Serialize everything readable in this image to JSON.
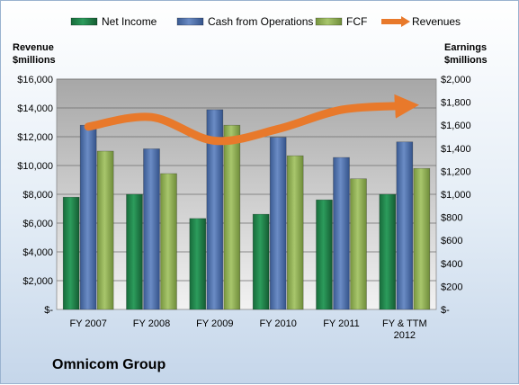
{
  "company_label": "Omnicom Group",
  "chart_data": {
    "type": "bar",
    "categories": [
      "FY 2007",
      "FY 2008",
      "FY 2009",
      "FY 2010",
      "FY 2011",
      "FY & TTM 2012"
    ],
    "category_lines": [
      [
        "FY 2007"
      ],
      [
        "FY 2008"
      ],
      [
        "FY 2009"
      ],
      [
        "FY 2010"
      ],
      [
        "FY 2011"
      ],
      [
        "FY & TTM",
        "2012"
      ]
    ],
    "left_axis": {
      "title_lines": [
        "Revenue",
        "$millions"
      ],
      "ylim": [
        0,
        16000
      ],
      "ticks": [
        0,
        2000,
        4000,
        6000,
        8000,
        10000,
        12000,
        14000,
        16000
      ],
      "tick_labels": [
        "$-",
        "$2,000",
        "$4,000",
        "$6,000",
        "$8,000",
        "$10,000",
        "$12,000",
        "$14,000",
        "$16,000"
      ]
    },
    "right_axis": {
      "title_lines": [
        "Earnings",
        "$millions"
      ],
      "ylim": [
        0,
        2000
      ],
      "ticks": [
        0,
        200,
        400,
        600,
        800,
        1000,
        1200,
        1400,
        1600,
        1800,
        2000
      ],
      "tick_labels": [
        "$-",
        "$200",
        "$400",
        "$600",
        "$800",
        "$1,000",
        "$1,200",
        "$1,400",
        "$1,600",
        "$1,800",
        "$2,000"
      ]
    },
    "series": [
      {
        "name": "Net Income",
        "type": "bar",
        "axis": "right",
        "color": "#1f8a4c",
        "values": [
          975,
          1000,
          790,
          827,
          952,
          1000
        ]
      },
      {
        "name": "Cash from Operations",
        "type": "bar",
        "axis": "right",
        "color": "#4a6fad",
        "values": [
          1600,
          1395,
          1735,
          1495,
          1320,
          1455
        ]
      },
      {
        "name": "FCF",
        "type": "bar",
        "axis": "right",
        "color": "#8faf52",
        "values": [
          1375,
          1180,
          1600,
          1335,
          1135,
          1225
        ]
      },
      {
        "name": "Revenues",
        "type": "line",
        "axis": "left",
        "color": "#e8792b",
        "values": [
          12700,
          13360,
          11720,
          12540,
          13870,
          14150
        ]
      }
    ],
    "grid": true,
    "legend_position": "top"
  }
}
